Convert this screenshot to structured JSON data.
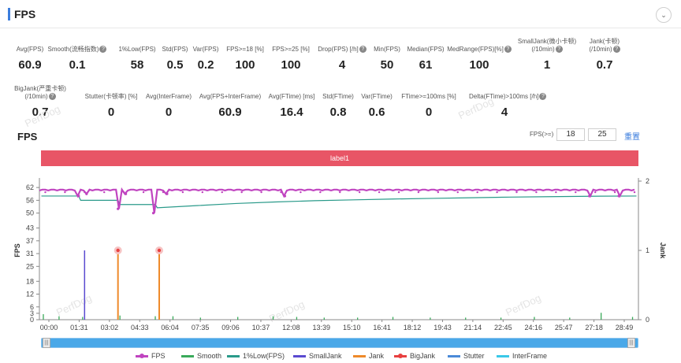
{
  "header": {
    "title": "FPS",
    "collapse_icon": "⌄"
  },
  "metrics_row1": [
    {
      "label": "Avg(FPS)",
      "value": "60.9",
      "help": false
    },
    {
      "label": "Smooth(流畅指数)",
      "value": "0.1",
      "help": true
    },
    {
      "label": "1%Low(FPS)",
      "value": "58",
      "help": false
    },
    {
      "label": "Std(FPS)",
      "value": "0.5",
      "help": false
    },
    {
      "label": "Var(FPS)",
      "value": "0.2",
      "help": false
    },
    {
      "label": "FPS>=18 [%]",
      "value": "100",
      "help": false
    },
    {
      "label": "FPS>=25 [%]",
      "value": "100",
      "help": false
    },
    {
      "label": "Drop(FPS) [/h]",
      "value": "4",
      "help": true
    },
    {
      "label": "Min(FPS)",
      "value": "50",
      "help": false
    },
    {
      "label": "Median(FPS)",
      "value": "61",
      "help": false
    },
    {
      "label": "MedRange(FPS)[%]",
      "value": "100",
      "help": true
    },
    {
      "label": "SmallJank(微小卡顿)",
      "label2": "(/10min)",
      "value": "1",
      "help": true
    },
    {
      "label": "Jank(卡顿)",
      "label2": "(/10min)",
      "value": "0.7",
      "help": true
    }
  ],
  "metrics_row2": [
    {
      "label": "BigJank(严重卡顿)",
      "label2": "(/10min)",
      "value": "0.7",
      "help": true
    },
    {
      "label": "Stutter(卡顿率) [%]",
      "value": "0",
      "help": false
    },
    {
      "label": "Avg(InterFrame)",
      "value": "0",
      "help": false
    },
    {
      "label": "Avg(FPS+InterFrame)",
      "value": "60.9",
      "help": false
    },
    {
      "label": "Avg(FTime) [ms]",
      "value": "16.4",
      "help": false
    },
    {
      "label": "Std(FTime)",
      "value": "0.8",
      "help": false
    },
    {
      "label": "Var(FTime)",
      "value": "0.6",
      "help": false
    },
    {
      "label": "FTime>=100ms [%]",
      "value": "0",
      "help": false
    },
    {
      "label": "Delta(FTime)>100ms [/h]",
      "value": "4",
      "help": true
    }
  ],
  "chart_panel": {
    "title": "FPS",
    "filter_label": "FPS(>=)",
    "threshold_1": "18",
    "threshold_2": "25",
    "reset_label": "重置",
    "band_label": "label1",
    "watermark": "PerfDog"
  },
  "chart_data": {
    "type": "line",
    "x_ticks": [
      "00:00",
      "01:31",
      "03:02",
      "04:33",
      "06:04",
      "07:35",
      "09:06",
      "10:37",
      "12:08",
      "13:39",
      "15:10",
      "16:41",
      "18:12",
      "19:43",
      "21:14",
      "22:45",
      "24:16",
      "25:47",
      "27:18",
      "28:49"
    ],
    "x_range_minutes": [
      0,
      30.5
    ],
    "y_left_label": "FPS",
    "y_left_ticks": [
      0,
      3,
      6,
      12,
      18,
      25,
      31,
      37,
      43,
      50,
      56,
      62
    ],
    "y_left_range": [
      0,
      65
    ],
    "y_right_label": "Jank",
    "y_right_ticks": [
      0,
      1,
      2
    ],
    "y_right_range": [
      0,
      2
    ],
    "series": [
      {
        "name": "FPS",
        "color": "#c044c0",
        "baseline": 61,
        "dips": [
          [
            2.0,
            58
          ],
          [
            2.4,
            59
          ],
          [
            4.0,
            52
          ],
          [
            4.4,
            59
          ],
          [
            5.8,
            50
          ],
          [
            6.5,
            59
          ],
          [
            12.5,
            58
          ],
          [
            28.0,
            58
          ],
          [
            29.5,
            58
          ]
        ]
      },
      {
        "name": "Smooth",
        "color": "#3aaa5a",
        "spikes": [
          [
            0.2,
            0.08
          ],
          [
            1.0,
            0.05
          ],
          [
            2.2,
            0.04
          ],
          [
            4.1,
            0.06
          ],
          [
            5.9,
            0.05
          ],
          [
            6.8,
            0.05
          ],
          [
            8.2,
            0.03
          ],
          [
            10.1,
            0.04
          ],
          [
            11.9,
            0.05
          ],
          [
            13.1,
            0.04
          ],
          [
            14.5,
            0.03
          ],
          [
            16.2,
            0.03
          ],
          [
            18.0,
            0.04
          ],
          [
            19.9,
            0.03
          ],
          [
            21.7,
            0.03
          ],
          [
            23.5,
            0.03
          ],
          [
            25.2,
            0.04
          ],
          [
            27.0,
            0.03
          ],
          [
            28.6,
            0.1
          ],
          [
            30.2,
            0.04
          ]
        ]
      },
      {
        "name": "1%Low(FPS)",
        "color": "#2a9a8a",
        "points": [
          [
            0.1,
            58
          ],
          [
            2.0,
            58
          ],
          [
            2.1,
            56
          ],
          [
            4.0,
            56
          ],
          [
            4.1,
            54
          ],
          [
            5.9,
            54
          ],
          [
            6.0,
            52.5
          ],
          [
            8,
            53.5
          ],
          [
            10,
            54.5
          ],
          [
            12,
            55.2
          ],
          [
            14,
            55.8
          ],
          [
            16,
            56.2
          ],
          [
            18,
            56.6
          ],
          [
            20,
            56.9
          ],
          [
            22,
            57.2
          ],
          [
            24,
            57.5
          ],
          [
            26,
            57.7
          ],
          [
            28,
            57.9
          ],
          [
            30.4,
            58
          ]
        ]
      },
      {
        "name": "SmallJank",
        "color": "#5a4ad0",
        "spikes": [
          [
            2.3,
            1.0
          ]
        ]
      },
      {
        "name": "Jank",
        "color": "#ee8a2a",
        "spikes": [
          [
            4.0,
            1.0
          ],
          [
            6.1,
            1.0
          ]
        ]
      },
      {
        "name": "BigJank",
        "color": "#e84040",
        "spikes": [
          [
            4.0,
            1.0
          ],
          [
            6.1,
            1.0
          ]
        ]
      },
      {
        "name": "Stutter",
        "color": "#4a8ad8",
        "spikes": []
      },
      {
        "name": "InterFrame",
        "color": "#3ac8e8",
        "spikes": []
      }
    ]
  },
  "legend": [
    {
      "name": "FPS",
      "color": "#c044c0",
      "dot": true
    },
    {
      "name": "Smooth",
      "color": "#3aaa5a",
      "dot": false
    },
    {
      "name": "1%Low(FPS)",
      "color": "#2a9a8a",
      "dot": false
    },
    {
      "name": "SmallJank",
      "color": "#5a4ad0",
      "dot": false
    },
    {
      "name": "Jank",
      "color": "#ee8a2a",
      "dot": false
    },
    {
      "name": "BigJank",
      "color": "#e84040",
      "dot": true
    },
    {
      "name": "Stutter",
      "color": "#4a8ad8",
      "dot": false
    },
    {
      "name": "InterFrame",
      "color": "#3ac8e8",
      "dot": false
    }
  ]
}
